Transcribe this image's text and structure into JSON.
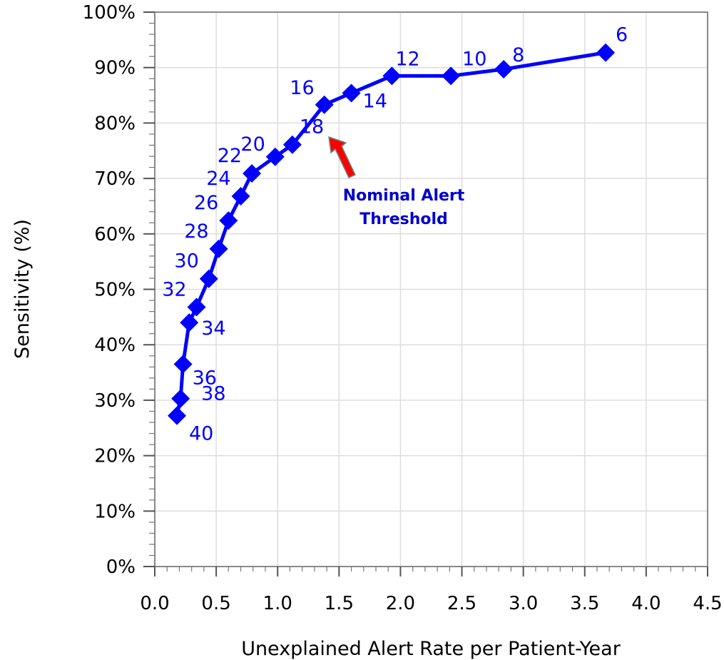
{
  "chart_data": {
    "type": "line",
    "title": "",
    "xlabel": "Unexplained Alert Rate per Patient-Year",
    "ylabel": "Sensitivity (%)",
    "xlim": [
      0,
      4.5
    ],
    "ylim": [
      0,
      100
    ],
    "x_ticks": [
      "0.0",
      "0.5",
      "1.0",
      "1.5",
      "2.0",
      "2.5",
      "3.0",
      "3.5",
      "4.0",
      "4.5"
    ],
    "y_ticks": [
      "0%",
      "10%",
      "20%",
      "30%",
      "40%",
      "50%",
      "60%",
      "70%",
      "80%",
      "90%",
      "100%"
    ],
    "grid": true,
    "series": [
      {
        "color": "#0000ff",
        "marker": "diamond",
        "points": [
          {
            "x": 0.18,
            "y": 27.2,
            "label": "40"
          },
          {
            "x": 0.21,
            "y": 30.3,
            "label": "38"
          },
          {
            "x": 0.23,
            "y": 36.5,
            "label": "36"
          },
          {
            "x": 0.28,
            "y": 44.0,
            "label": "34"
          },
          {
            "x": 0.34,
            "y": 46.8,
            "label": "32"
          },
          {
            "x": 0.44,
            "y": 51.9,
            "label": "30"
          },
          {
            "x": 0.52,
            "y": 57.3,
            "label": "28"
          },
          {
            "x": 0.6,
            "y": 62.4,
            "label": "26"
          },
          {
            "x": 0.7,
            "y": 66.8,
            "label": "24"
          },
          {
            "x": 0.79,
            "y": 70.9,
            "label": "22"
          },
          {
            "x": 0.98,
            "y": 73.9,
            "label": "20"
          },
          {
            "x": 1.12,
            "y": 76.1,
            "label": "18"
          },
          {
            "x": 1.38,
            "y": 83.3,
            "label": "16"
          },
          {
            "x": 1.6,
            "y": 85.4,
            "label": "14"
          },
          {
            "x": 1.93,
            "y": 88.5,
            "label": "12"
          },
          {
            "x": 2.41,
            "y": 88.5,
            "label": "10"
          },
          {
            "x": 2.84,
            "y": 89.7,
            "label": "8"
          },
          {
            "x": 3.67,
            "y": 92.7,
            "label": "6"
          }
        ]
      }
    ],
    "annotation": {
      "lines": [
        "Nominal Alert",
        "Threshold"
      ],
      "text_color": "#0000cc",
      "arrow_color": "#ff0000"
    }
  }
}
